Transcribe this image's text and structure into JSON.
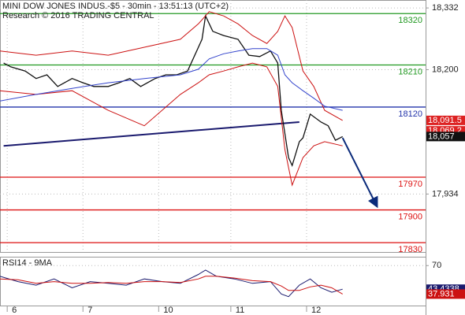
{
  "chart_data": [
    {
      "type": "line",
      "title": "MINI DOW JONES INDUS.-$5 - 30min - 13:51:13 (UTC+2)",
      "subtitle": "Research © 2016 TRADING CENTRAL",
      "xlim": [
        0,
        118
      ],
      "xticks": [
        {
          "value": 2,
          "label": "6"
        },
        {
          "value": 23,
          "label": "7"
        },
        {
          "value": 44,
          "label": "10"
        },
        {
          "value": 64,
          "label": "11"
        },
        {
          "value": 85,
          "label": "12"
        }
      ],
      "ylim": [
        17810,
        18349
      ],
      "yticks": [
        {
          "value": 18332,
          "label": "18,332"
        },
        {
          "value": 18200,
          "label": "18,200"
        },
        {
          "value": 17934,
          "label": "17,934"
        }
      ],
      "grid": true,
      "series": [
        {
          "color": "#111111",
          "width": 1.3,
          "x": [
            1,
            3,
            7,
            10,
            13,
            16,
            20,
            23,
            26,
            30,
            33,
            36,
            39,
            43,
            46,
            49,
            52,
            56,
            57,
            59,
            62,
            66,
            69,
            72,
            75,
            77,
            78,
            79,
            80,
            81,
            83,
            84,
            86,
            89,
            91,
            93,
            95
          ],
          "values": [
            18214,
            18206,
            18197,
            18181,
            18189,
            18164,
            18181,
            18172,
            18164,
            18164,
            18172,
            18181,
            18164,
            18181,
            18189,
            18189,
            18197,
            18265,
            18315,
            18282,
            18273,
            18265,
            18231,
            18228,
            18240,
            18214,
            18113,
            18063,
            18012,
            17995,
            18046,
            18054,
            18105,
            18088,
            18080,
            18049,
            18057
          ]
        },
        {
          "color": "#cc1111",
          "width": 1,
          "x": [
            0,
            10,
            20,
            30,
            40,
            50,
            55,
            58,
            62,
            66,
            70,
            74,
            77,
            79,
            81,
            84,
            87,
            90,
            95
          ],
          "values": [
            18240,
            18231,
            18240,
            18231,
            18248,
            18265,
            18298,
            18324,
            18315,
            18298,
            18273,
            18256,
            18282,
            18315,
            18290,
            18197,
            18164,
            18113,
            18091.5
          ]
        },
        {
          "color": "#cc1111",
          "width": 1,
          "x": [
            0,
            10,
            20,
            30,
            40,
            50,
            55,
            58,
            62,
            66,
            70,
            74,
            77,
            79,
            81,
            84,
            87,
            90,
            95
          ],
          "values": [
            18155,
            18147,
            18155,
            18113,
            18080,
            18147,
            18172,
            18189,
            18197,
            18206,
            18214,
            18206,
            18164,
            18029,
            17953,
            18012,
            18037,
            18046,
            18037
          ]
        },
        {
          "color": "#3344cc",
          "width": 1,
          "x": [
            0,
            10,
            20,
            30,
            40,
            50,
            55,
            58,
            62,
            66,
            70,
            74,
            77,
            79,
            81,
            84,
            87,
            90,
            95
          ],
          "values": [
            18133,
            18147,
            18160,
            18172,
            18181,
            18189,
            18201,
            18223,
            18234,
            18240,
            18245,
            18245,
            18231,
            18189,
            18172,
            18155,
            18139,
            18122,
            18113
          ]
        }
      ],
      "levels": [
        {
          "value": 18320,
          "color": "#229922"
        },
        {
          "value": 18210,
          "color": "#229922"
        },
        {
          "value": 18120,
          "color": "#2233aa"
        },
        {
          "value": 17970,
          "color": "#dd1111"
        },
        {
          "value": 17900,
          "color": "#dd1111"
        },
        {
          "value": 17830,
          "color": "#dd1111"
        }
      ],
      "trendline": {
        "color": "#1a1a6e",
        "x": [
          1,
          83
        ],
        "values": [
          18037,
          18088
        ]
      },
      "forecast": {
        "color": "#0a2a7a",
        "x": [
          95,
          104.5
        ],
        "values": [
          18054,
          17908
        ]
      },
      "price_labels": [
        {
          "value": 18091.5,
          "label": "18,091.5",
          "color": "#dd2222"
        },
        {
          "value": 18069.2,
          "label": "18,069.2",
          "color": "#dd2222"
        },
        {
          "value": 18057,
          "label": "18,057",
          "color": "#111111"
        }
      ]
    },
    {
      "type": "line",
      "title": "RSI14 - 9MA",
      "xlim": [
        0,
        118
      ],
      "ylim": [
        25,
        80
      ],
      "yticks": [
        70
      ],
      "grid": true,
      "series": [
        {
          "color": "#1a1a6e",
          "width": 1,
          "x": [
            0,
            5,
            10,
            15,
            20,
            25,
            30,
            35,
            40,
            45,
            50,
            55,
            57,
            60,
            65,
            70,
            75,
            78,
            80,
            83,
            86,
            89,
            92,
            95
          ],
          "values": [
            58,
            52,
            48,
            55,
            45,
            52,
            50,
            48,
            55,
            52,
            50,
            60,
            65,
            58,
            55,
            50,
            52,
            38,
            35,
            48,
            55,
            45,
            40,
            43.4338
          ]
        },
        {
          "color": "#cc1111",
          "width": 1,
          "x": [
            0,
            5,
            10,
            15,
            20,
            25,
            30,
            35,
            40,
            45,
            50,
            55,
            57,
            60,
            65,
            70,
            75,
            78,
            80,
            83,
            86,
            89,
            92,
            95
          ],
          "values": [
            55,
            54,
            50,
            52,
            50,
            50,
            51,
            50,
            52,
            52,
            51,
            55,
            58,
            58,
            56,
            53,
            52,
            47,
            42,
            42,
            46,
            48,
            45,
            37.931
          ]
        }
      ]
    }
  ]
}
